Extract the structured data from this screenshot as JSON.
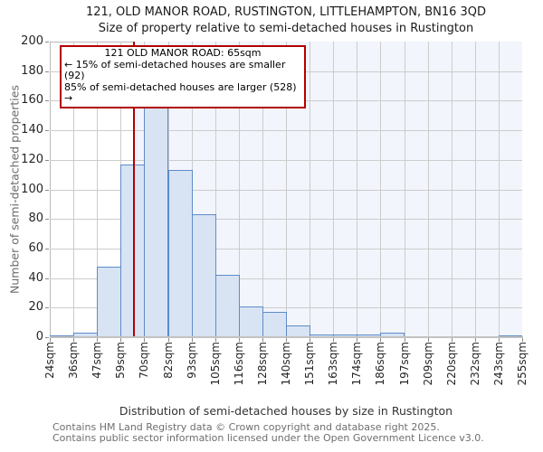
{
  "title": "121, OLD MANOR ROAD, RUSTINGTON, LITTLEHAMPTON, BN16 3QD",
  "subtitle": "Size of property relative to semi-detached houses in Rustington",
  "chart_data": {
    "type": "bar",
    "title": "121, OLD MANOR ROAD, RUSTINGTON, LITTLEHAMPTON, BN16 3QD",
    "subtitle": "Size of property relative to semi-detached houses in Rustington",
    "xlabel": "Distribution of semi-detached houses by size in Rustington",
    "ylabel": "Number of semi-detached properties",
    "x_tick_labels": [
      "24sqm",
      "36sqm",
      "47sqm",
      "59sqm",
      "70sqm",
      "82sqm",
      "93sqm",
      "105sqm",
      "116sqm",
      "128sqm",
      "140sqm",
      "151sqm",
      "163sqm",
      "174sqm",
      "186sqm",
      "197sqm",
      "209sqm",
      "220sqm",
      "232sqm",
      "243sqm",
      "255sqm"
    ],
    "bin_edges_sqm": [
      24,
      36,
      47,
      59,
      70,
      82,
      93,
      105,
      116,
      128,
      140,
      151,
      163,
      174,
      186,
      197,
      209,
      220,
      232,
      243,
      255
    ],
    "values": [
      1,
      3,
      48,
      117,
      162,
      113,
      83,
      42,
      21,
      17,
      8,
      2,
      2,
      2,
      3,
      0,
      0,
      0,
      0,
      1
    ],
    "ylim": [
      0,
      200
    ],
    "ytick_step": 20,
    "grid": true,
    "legend": "none",
    "marker_value_sqm": 65,
    "shade_region": {
      "from_sqm": 65,
      "to_sqm": 255
    },
    "annotation": {
      "line1": "121 OLD MANOR ROAD: 65sqm",
      "line2": "← 15% of semi-detached houses are smaller (92)",
      "line3": "85% of semi-detached houses are larger (528) →"
    },
    "colors": {
      "bar_fill": "#d8e3f4",
      "bar_edge": "#5e8cc8",
      "marker_red": "#b30000",
      "shade": "#f2f5fc",
      "grid": "#cccccc"
    }
  },
  "footer": {
    "line1": "Contains HM Land Registry data © Crown copyright and database right 2025.",
    "line2": "Contains public sector information licensed under the Open Government Licence v3.0."
  }
}
